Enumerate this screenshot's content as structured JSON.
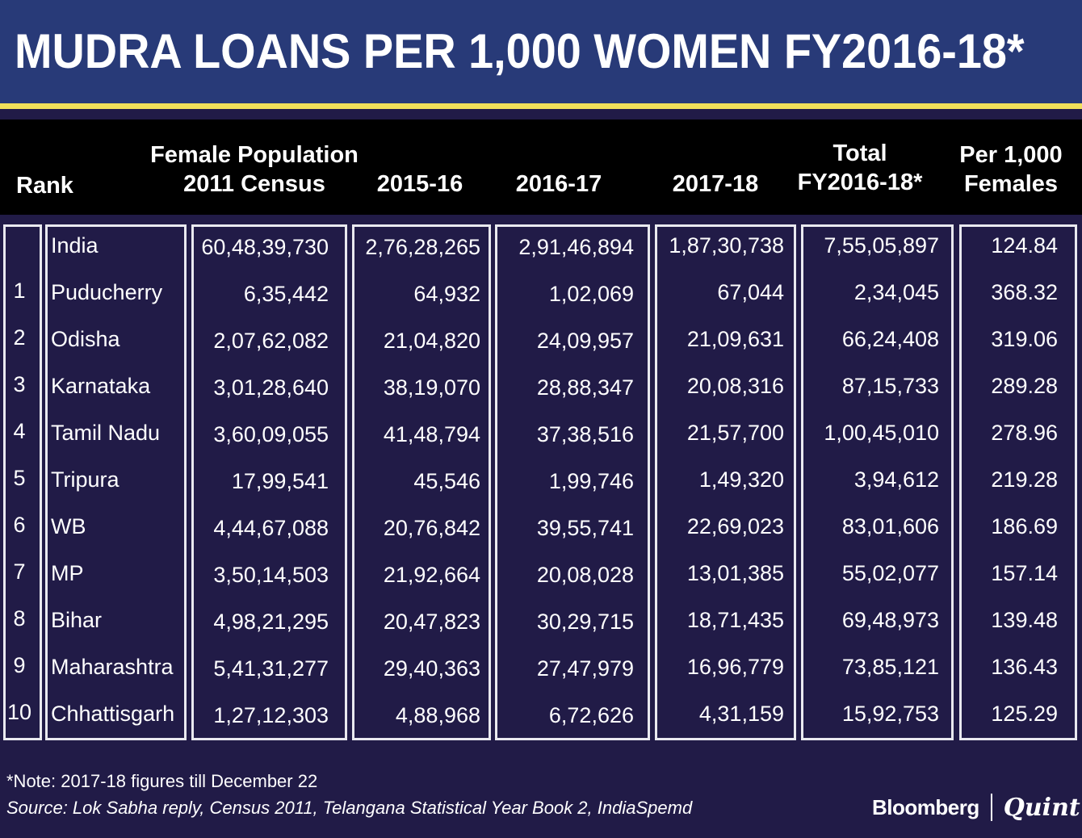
{
  "title": "MUDRA LOANS PER 1,000 WOMEN FY2016-18*",
  "headers": {
    "rank": "Rank",
    "population_line1": "Female Population",
    "population_line2": "2011 Census",
    "fy1516": "2015-16",
    "fy1617": "2016-17",
    "fy1718": "2017-18",
    "total_line1": "Total",
    "total_line2": "FY2016-18*",
    "per_line1": "Per 1,000",
    "per_line2": "Females"
  },
  "rows": [
    {
      "rank": "",
      "state": "India",
      "population": "60,48,39,730",
      "fy1516": "2,76,28,265",
      "fy1617": "2,91,46,894",
      "fy1718": "1,87,30,738",
      "total": "7,55,05,897",
      "per1000": "124.84"
    },
    {
      "rank": "1",
      "state": "Puducherry",
      "population": "6,35,442",
      "fy1516": "64,932",
      "fy1617": "1,02,069",
      "fy1718": "67,044",
      "total": "2,34,045",
      "per1000": "368.32"
    },
    {
      "rank": "2",
      "state": "Odisha",
      "population": "2,07,62,082",
      "fy1516": "21,04,820",
      "fy1617": "24,09,957",
      "fy1718": "21,09,631",
      "total": "66,24,408",
      "per1000": "319.06"
    },
    {
      "rank": "3",
      "state": "Karnataka",
      "population": "3,01,28,640",
      "fy1516": "38,19,070",
      "fy1617": "28,88,347",
      "fy1718": "20,08,316",
      "total": "87,15,733",
      "per1000": "289.28"
    },
    {
      "rank": "4",
      "state": "Tamil Nadu",
      "population": "3,60,09,055",
      "fy1516": "41,48,794",
      "fy1617": "37,38,516",
      "fy1718": "21,57,700",
      "total": "1,00,45,010",
      "per1000": "278.96"
    },
    {
      "rank": "5",
      "state": "Tripura",
      "population": "17,99,541",
      "fy1516": "45,546",
      "fy1617": "1,99,746",
      "fy1718": "1,49,320",
      "total": "3,94,612",
      "per1000": "219.28"
    },
    {
      "rank": "6",
      "state": "WB",
      "population": "4,44,67,088",
      "fy1516": "20,76,842",
      "fy1617": "39,55,741",
      "fy1718": "22,69,023",
      "total": "83,01,606",
      "per1000": "186.69"
    },
    {
      "rank": "7",
      "state": "MP",
      "population": "3,50,14,503",
      "fy1516": "21,92,664",
      "fy1617": "20,08,028",
      "fy1718": "13,01,385",
      "total": "55,02,077",
      "per1000": "157.14"
    },
    {
      "rank": "8",
      "state": "Bihar",
      "population": "4,98,21,295",
      "fy1516": "20,47,823",
      "fy1617": "30,29,715",
      "fy1718": "18,71,435",
      "total": "69,48,973",
      "per1000": "139.48"
    },
    {
      "rank": "9",
      "state": "Maharashtra",
      "population": "5,41,31,277",
      "fy1516": "29,40,363",
      "fy1617": "27,47,979",
      "fy1718": "16,96,779",
      "total": "73,85,121",
      "per1000": "136.43"
    },
    {
      "rank": "10",
      "state": "Chhattisgarh",
      "population": "1,27,12,303",
      "fy1516": "4,88,968",
      "fy1617": "6,72,626",
      "fy1718": "4,31,159",
      "total": "15,92,753",
      "per1000": "125.29"
    }
  ],
  "note": "*Note: 2017-18 figures till December 22",
  "source": "Source: Lok Sabha reply, Census 2011, Telangana Statistical Year Book 2, IndiaSpemd",
  "brand": {
    "left": "Bloomberg",
    "right": "Quint"
  },
  "colors": {
    "background": "#211b47",
    "title_band": "#283a78",
    "accent": "#f1e05a",
    "header_band": "#000000"
  }
}
